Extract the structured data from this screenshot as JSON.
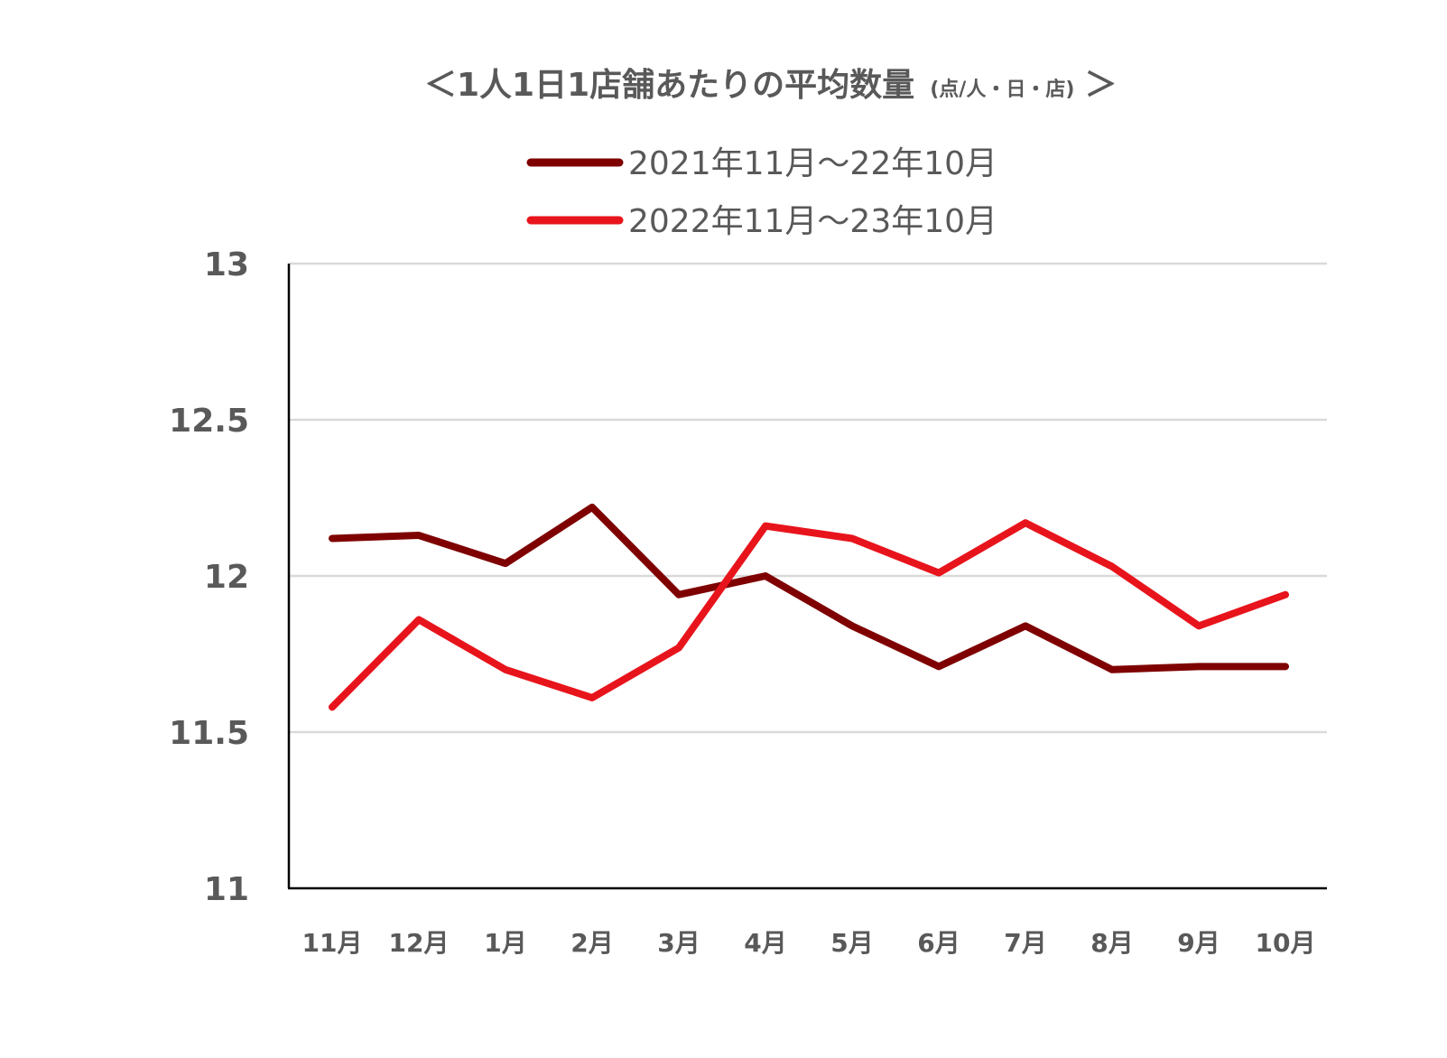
{
  "chart_data": {
    "type": "line",
    "title": "＜1人1日1店舗あたりの平均数量",
    "title_unit": "(点/人・日・店)",
    "title_close": "＞",
    "categories": [
      "11月",
      "12月",
      "1月",
      "2月",
      "3月",
      "4月",
      "5月",
      "6月",
      "7月",
      "8月",
      "9月",
      "10月"
    ],
    "series": [
      {
        "name": "2021年11月～22年10月",
        "color": "#7f0000",
        "values": [
          12.12,
          12.13,
          12.04,
          12.22,
          11.94,
          12.0,
          11.84,
          11.71,
          11.84,
          11.7,
          11.71,
          11.71
        ]
      },
      {
        "name": "2022年11月～23年10月",
        "color": "#e8141c",
        "values": [
          11.58,
          11.86,
          11.7,
          11.61,
          11.77,
          12.16,
          12.12,
          12.01,
          12.17,
          12.03,
          11.84,
          11.94
        ]
      }
    ],
    "yticks": [
      "11",
      "11.5",
      "12",
      "12.5",
      "13"
    ],
    "ylim": [
      11,
      13
    ],
    "grid": true,
    "legend_position": "top-center"
  }
}
